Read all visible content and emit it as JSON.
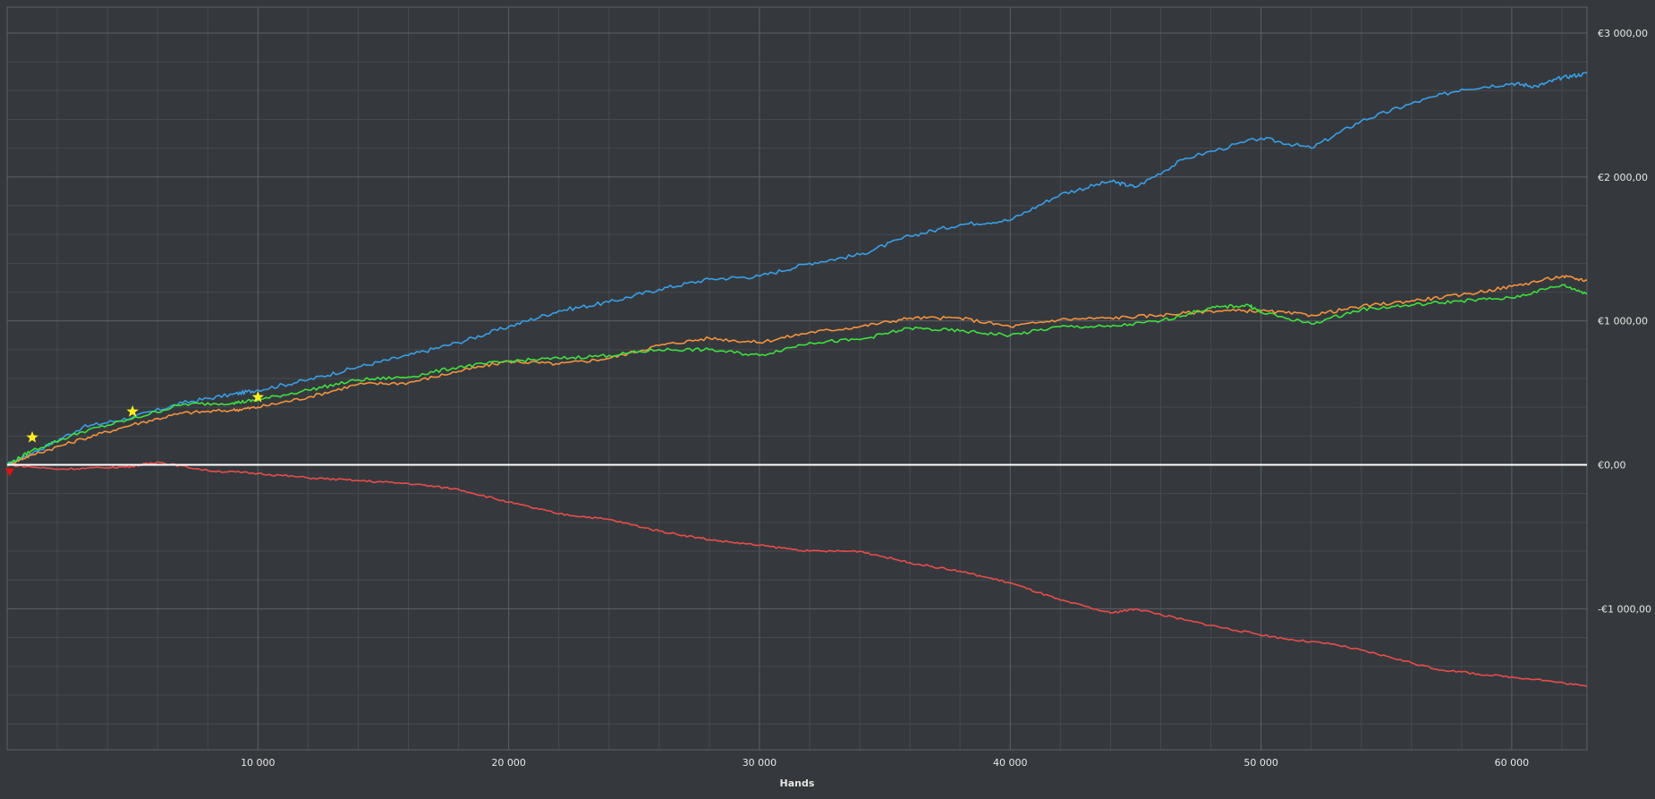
{
  "chart_data": {
    "type": "line",
    "xlabel": "Hands",
    "ylabel": "",
    "xlim": [
      0,
      63000
    ],
    "ylim": [
      -1980,
      3180
    ],
    "x_ticks": [
      10000,
      20000,
      30000,
      40000,
      50000,
      60000
    ],
    "x_tick_labels": [
      "10 000",
      "20 000",
      "30 000",
      "40 000",
      "50 000",
      "60 000"
    ],
    "y_ticks": [
      -1000,
      0,
      1000,
      2000,
      3000
    ],
    "y_tick_labels": [
      "-€1 000,00",
      "€0,00",
      "€1 000,00",
      "€2 000,00",
      "€3 000,00"
    ],
    "grid": true,
    "colors": {
      "background": "#35393d",
      "grid_major": "#5c6166",
      "grid_minor": "#464a4f",
      "zero_line": "#ffffff",
      "blue": "#3a9ee6",
      "orange": "#f5923e",
      "green": "#3fe03f",
      "red": "#e84c4c",
      "star": "#ffee22",
      "red_marker": "#e01010"
    },
    "series": [
      {
        "color": "#3a9ee6",
        "x": [
          0,
          1000,
          3000,
          5000,
          7000,
          9000,
          10000,
          12000,
          14000,
          16000,
          18000,
          20000,
          22000,
          24000,
          26000,
          28000,
          30000,
          32000,
          34000,
          36000,
          38000,
          40000,
          42000,
          44000,
          45000,
          47000,
          50000,
          52000,
          54000,
          56000,
          58000,
          60000,
          61000,
          62000,
          63000
        ],
        "y": [
          0,
          80,
          260,
          330,
          430,
          490,
          520,
          590,
          680,
          760,
          850,
          960,
          1070,
          1130,
          1220,
          1290,
          1310,
          1400,
          1460,
          1590,
          1670,
          1700,
          1880,
          1970,
          1930,
          2130,
          2270,
          2200,
          2390,
          2510,
          2610,
          2650,
          2630,
          2690,
          2720
        ]
      },
      {
        "color": "#f5923e",
        "x": [
          0,
          1000,
          3000,
          5000,
          7000,
          9000,
          10000,
          12000,
          14000,
          16000,
          18000,
          20000,
          22000,
          24000,
          26000,
          28000,
          30000,
          32000,
          34000,
          36000,
          38000,
          40000,
          42000,
          44000,
          46000,
          48000,
          50000,
          52000,
          54000,
          56000,
          58000,
          60000,
          62000,
          63000
        ],
        "y": [
          0,
          70,
          180,
          280,
          360,
          380,
          400,
          470,
          560,
          570,
          650,
          720,
          700,
          740,
          830,
          880,
          850,
          920,
          960,
          1020,
          1020,
          960,
          1010,
          1020,
          1040,
          1070,
          1070,
          1040,
          1100,
          1140,
          1180,
          1240,
          1310,
          1280
        ]
      },
      {
        "color": "#3fe03f",
        "x": [
          0,
          1000,
          3000,
          5000,
          7000,
          9000,
          10000,
          12000,
          14000,
          16000,
          18000,
          20000,
          22000,
          24000,
          26000,
          28000,
          30000,
          32000,
          34000,
          36000,
          38000,
          40000,
          42000,
          44000,
          46000,
          48000,
          49500,
          50000,
          52000,
          54000,
          56000,
          58000,
          60000,
          62000,
          63000
        ],
        "y": [
          0,
          100,
          230,
          320,
          420,
          430,
          450,
          520,
          590,
          610,
          680,
          720,
          740,
          760,
          800,
          800,
          760,
          850,
          870,
          950,
          930,
          900,
          960,
          960,
          1000,
          1090,
          1110,
          1060,
          980,
          1080,
          1110,
          1140,
          1160,
          1250,
          1190
        ]
      },
      {
        "color": "#e84c4c",
        "x": [
          0,
          2000,
          4000,
          5000,
          6000,
          8000,
          10000,
          12000,
          14000,
          16000,
          18000,
          20000,
          22000,
          24000,
          26000,
          28000,
          30000,
          32000,
          34000,
          36000,
          38000,
          40000,
          42000,
          44000,
          45000,
          47000,
          49000,
          51000,
          53000,
          55000,
          57000,
          59000,
          61000,
          63000
        ],
        "y": [
          0,
          -30,
          -20,
          -10,
          20,
          -40,
          -60,
          -90,
          -110,
          -130,
          -170,
          -260,
          -340,
          -380,
          -460,
          -520,
          -560,
          -600,
          -600,
          -680,
          -740,
          -820,
          -940,
          -1030,
          -1000,
          -1080,
          -1150,
          -1210,
          -1250,
          -1330,
          -1420,
          -1460,
          -1490,
          -1540
        ]
      }
    ],
    "annotations": [
      {
        "type": "star",
        "x": 1000,
        "y": 190
      },
      {
        "type": "star",
        "x": 5000,
        "y": 370
      },
      {
        "type": "star",
        "x": 10000,
        "y": 470
      },
      {
        "type": "triangle-down",
        "x": 100,
        "y": -50
      }
    ]
  }
}
